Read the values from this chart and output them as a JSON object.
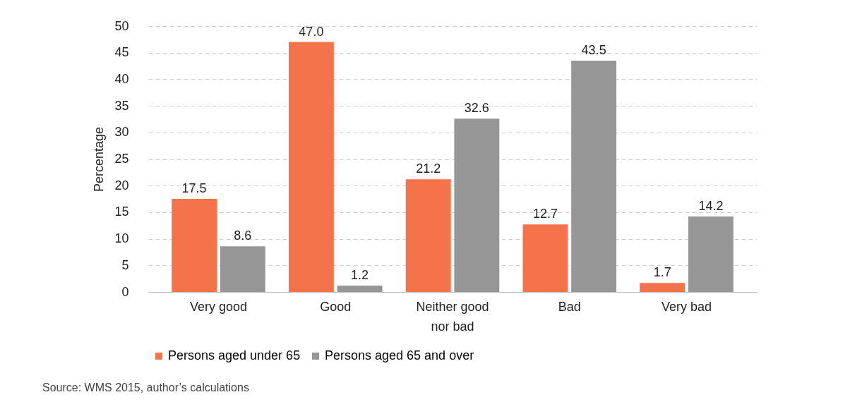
{
  "chart_data": {
    "type": "bar",
    "ylabel": "Percentage",
    "categories": [
      "Very good",
      "Good",
      "Neither good nor bad",
      "Bad",
      "Very bad"
    ],
    "series": [
      {
        "name": "Persons aged under 65",
        "color": "#f4734a",
        "values": [
          17.5,
          47.0,
          21.2,
          12.7,
          1.7
        ]
      },
      {
        "name": "Persons aged 65 and over",
        "color": "#969696",
        "values": [
          8.6,
          1.2,
          32.6,
          43.5,
          14.2
        ]
      }
    ],
    "value_labels": [
      [
        "17.5",
        "47.0",
        "21.2",
        "12.7",
        "1.7"
      ],
      [
        "8.6",
        "1.2",
        "32.6",
        "43.5",
        "14.2"
      ]
    ],
    "ylim": [
      0,
      50
    ],
    "yticks": [
      0,
      5,
      10,
      15,
      20,
      25,
      30,
      35,
      40,
      45,
      50
    ],
    "grid": "y",
    "legend": "bottom",
    "annotations": [
      "Source: WMS 2015, author’s calculations"
    ]
  }
}
